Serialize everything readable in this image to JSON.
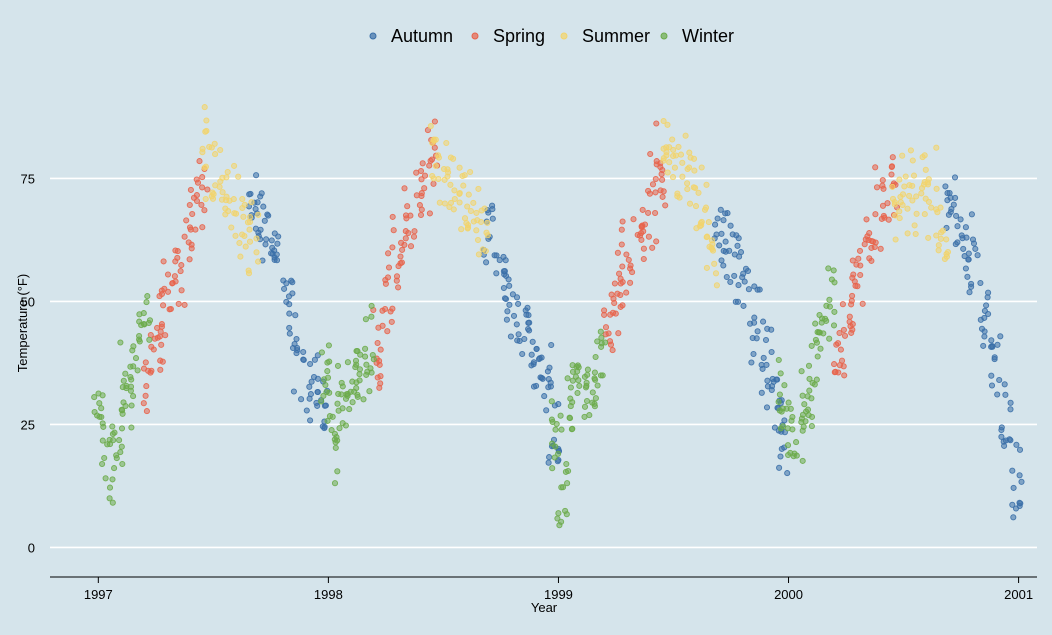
{
  "chart_data": {
    "type": "scatter",
    "title": "",
    "xlabel": "Year",
    "ylabel": "Temperature (°F)",
    "xlim": [
      1996.79,
      2001.08
    ],
    "ylim": [
      -6,
      95
    ],
    "xticks": [
      1997,
      1998,
      1999,
      2000,
      2001
    ],
    "xtick_labels": [
      "1997",
      "1998",
      "1999",
      "2000",
      "2001"
    ],
    "yticks": [
      0,
      25,
      50,
      75
    ],
    "ytick_labels": [
      "0",
      "25",
      "50",
      "75"
    ],
    "grid": "horizontal",
    "legend_position": "top",
    "point_alpha": 0.55,
    "series": [
      {
        "name": "Autumn",
        "color": "#3a6fa8",
        "anchors": [
          [
            1997.68,
            70
          ],
          [
            1997.72,
            66
          ],
          [
            1997.77,
            60
          ],
          [
            1997.82,
            50
          ],
          [
            1997.87,
            38
          ],
          [
            1997.93,
            33
          ],
          [
            1997.97,
            30
          ],
          [
            1998.7,
            63
          ],
          [
            1998.75,
            57
          ],
          [
            1998.8,
            50
          ],
          [
            1998.85,
            45
          ],
          [
            1998.9,
            40
          ],
          [
            1998.95,
            34
          ],
          [
            1998.98,
            22
          ],
          [
            1999.7,
            63
          ],
          [
            1999.75,
            60
          ],
          [
            1999.8,
            55
          ],
          [
            1999.85,
            45
          ],
          [
            1999.9,
            38
          ],
          [
            1999.95,
            30
          ],
          [
            1999.98,
            20
          ],
          [
            2000.7,
            70
          ],
          [
            2000.75,
            65
          ],
          [
            2000.8,
            58
          ],
          [
            2000.85,
            48
          ],
          [
            2000.9,
            40
          ],
          [
            2000.95,
            25
          ],
          [
            2000.99,
            12
          ]
        ]
      },
      {
        "name": "Spring",
        "color": "#e8634a",
        "anchors": [
          [
            1997.22,
            34
          ],
          [
            1997.26,
            45
          ],
          [
            1997.3,
            51
          ],
          [
            1997.35,
            58
          ],
          [
            1997.4,
            64
          ],
          [
            1997.45,
            72
          ],
          [
            1998.22,
            40
          ],
          [
            1998.26,
            52
          ],
          [
            1998.3,
            60
          ],
          [
            1998.35,
            66
          ],
          [
            1998.4,
            74
          ],
          [
            1998.45,
            78
          ],
          [
            1999.22,
            45
          ],
          [
            1999.26,
            52
          ],
          [
            1999.3,
            58
          ],
          [
            1999.35,
            64
          ],
          [
            1999.4,
            70
          ],
          [
            1999.45,
            77
          ],
          [
            2000.22,
            36
          ],
          [
            2000.26,
            47
          ],
          [
            2000.3,
            55
          ],
          [
            2000.35,
            62
          ],
          [
            2000.4,
            70
          ],
          [
            2000.45,
            74
          ]
        ]
      },
      {
        "name": "Summer",
        "color": "#f2d46b",
        "anchors": [
          [
            1997.47,
            80
          ],
          [
            1997.52,
            75
          ],
          [
            1997.57,
            70
          ],
          [
            1997.62,
            67
          ],
          [
            1997.67,
            63
          ],
          [
            1998.47,
            78
          ],
          [
            1998.52,
            75
          ],
          [
            1998.57,
            73
          ],
          [
            1998.62,
            70
          ],
          [
            1998.67,
            66
          ],
          [
            1999.47,
            80
          ],
          [
            1999.52,
            79
          ],
          [
            1999.57,
            74
          ],
          [
            1999.62,
            68
          ],
          [
            1999.67,
            58
          ],
          [
            2000.47,
            70
          ],
          [
            2000.52,
            73
          ],
          [
            2000.57,
            73
          ],
          [
            2000.62,
            72
          ],
          [
            2000.67,
            64
          ]
        ]
      },
      {
        "name": "Winter",
        "color": "#6bab4a",
        "anchors": [
          [
            1997.0,
            30
          ],
          [
            1997.04,
            15
          ],
          [
            1997.08,
            22
          ],
          [
            1997.12,
            33
          ],
          [
            1997.16,
            38
          ],
          [
            1997.2,
            45
          ],
          [
            1997.98,
            35
          ],
          [
            1998.02,
            22
          ],
          [
            1998.06,
            30
          ],
          [
            1998.1,
            35
          ],
          [
            1998.14,
            38
          ],
          [
            1998.18,
            40
          ],
          [
            1998.99,
            22
          ],
          [
            1999.02,
            10
          ],
          [
            1999.06,
            32
          ],
          [
            1999.1,
            35
          ],
          [
            1999.14,
            33
          ],
          [
            1999.18,
            38
          ],
          [
            1999.98,
            28
          ],
          [
            2000.02,
            22
          ],
          [
            2000.06,
            27
          ],
          [
            2000.1,
            32
          ],
          [
            2000.14,
            45
          ],
          [
            2000.18,
            50
          ]
        ]
      }
    ]
  }
}
